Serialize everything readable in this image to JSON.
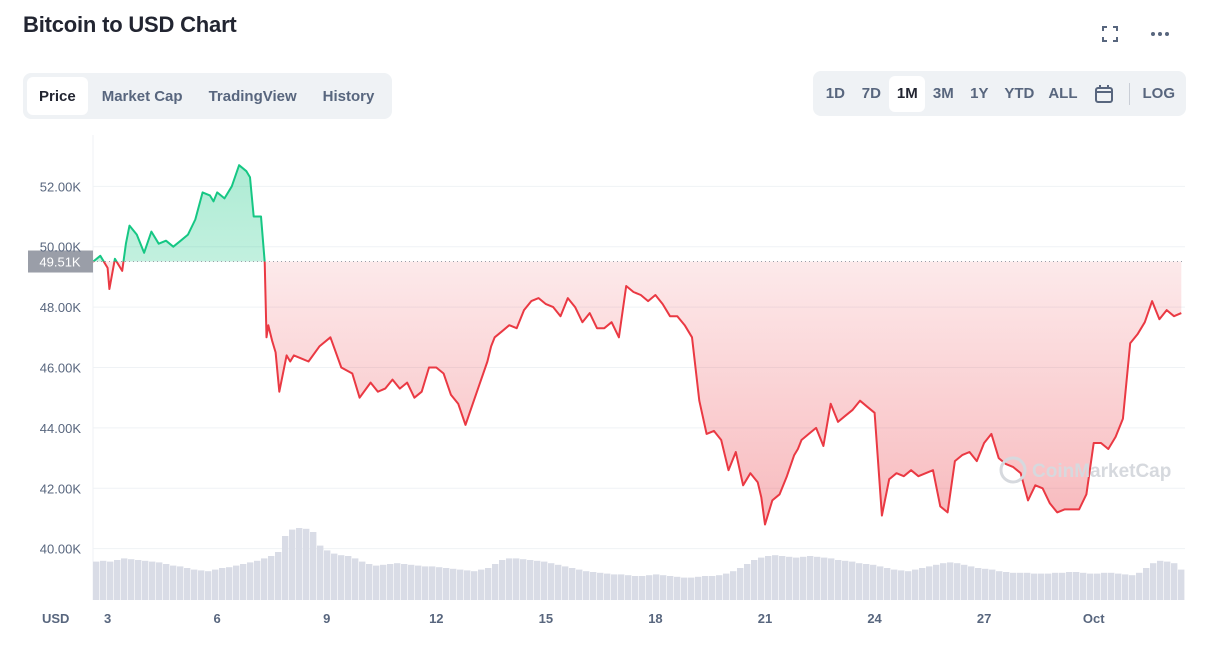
{
  "header": {
    "title": "Bitcoin to USD Chart"
  },
  "icons": {
    "fullscreen": "fullscreen-icon",
    "more": "more-horizontal-icon",
    "calendar": "calendar-icon"
  },
  "tabs": [
    {
      "label": "Price",
      "active": true
    },
    {
      "label": "Market Cap",
      "active": false
    },
    {
      "label": "TradingView",
      "active": false
    },
    {
      "label": "History",
      "active": false
    }
  ],
  "ranges": [
    {
      "label": "1D",
      "active": false
    },
    {
      "label": "7D",
      "active": false
    },
    {
      "label": "1M",
      "active": true
    },
    {
      "label": "3M",
      "active": false
    },
    {
      "label": "1Y",
      "active": false
    },
    {
      "label": "YTD",
      "active": false
    },
    {
      "label": "ALL",
      "active": false
    }
  ],
  "log_label": "LOG",
  "watermark": "CoinMarketCap",
  "colors": {
    "up": "#16c784",
    "down": "#ea3943",
    "volume": "#d9dce6",
    "price_tag": "#9a9ea8"
  },
  "chart_data": {
    "type": "area",
    "y_unit_label": "USD",
    "yticks": [
      "40.00K",
      "42.00K",
      "44.00K",
      "46.00K",
      "48.00K",
      "50.00K",
      "52.00K"
    ],
    "ytick_values": [
      40000,
      42000,
      44000,
      46000,
      48000,
      50000,
      52000
    ],
    "ylim": [
      38300,
      53700
    ],
    "xticks": [
      "3",
      "6",
      "9",
      "12",
      "15",
      "18",
      "21",
      "24",
      "27",
      "Oct"
    ],
    "xtick_values": [
      3,
      6,
      9,
      12,
      15,
      18,
      21,
      24,
      27,
      30
    ],
    "xlim": [
      2.6,
      32.5
    ],
    "reference_price": 49510,
    "reference_label": "49.51K",
    "series": [
      {
        "x": [
          2.6,
          2.8,
          3.0,
          3.05,
          3.2,
          3.4,
          3.5,
          3.6,
          3.8,
          4.0,
          4.2,
          4.4,
          4.6,
          4.8,
          5.0,
          5.2,
          5.4,
          5.6,
          5.8,
          5.9,
          6.0,
          6.2,
          6.4,
          6.6,
          6.8,
          6.9,
          7.0,
          7.2,
          7.3,
          7.35,
          7.4,
          7.5,
          7.55,
          7.6,
          7.7,
          7.9,
          8.0,
          8.1,
          8.3,
          8.5,
          8.8,
          9.1,
          9.4,
          9.7,
          9.9,
          10.2,
          10.4,
          10.6,
          10.8,
          11.0,
          11.2,
          11.4,
          11.6,
          11.8,
          12.0,
          12.2,
          12.4,
          12.6,
          12.8,
          13.0,
          13.2,
          13.4,
          13.5,
          13.6,
          13.8,
          14.0,
          14.2,
          14.4,
          14.6,
          14.8,
          15.0,
          15.2,
          15.4,
          15.6,
          15.8,
          16.0,
          16.2,
          16.4,
          16.6,
          16.8,
          17.0,
          17.2,
          17.4,
          17.6,
          17.8,
          18.0,
          18.2,
          18.4,
          18.6,
          18.8,
          19.0,
          19.2,
          19.4,
          19.6,
          19.8,
          20.0,
          20.2,
          20.4,
          20.6,
          20.8,
          20.9,
          21.0,
          21.2,
          21.4,
          21.6,
          21.8,
          21.9,
          22.0,
          22.2,
          22.4,
          22.6,
          22.8,
          23.0,
          23.2,
          23.4,
          23.6,
          23.8,
          24.0,
          24.2,
          24.4,
          24.6,
          24.8,
          25.0,
          25.2,
          25.4,
          25.6,
          25.8,
          26.0,
          26.2,
          26.4,
          26.6,
          26.8,
          27.0,
          27.2,
          27.4,
          27.6,
          27.8,
          28.0,
          28.2,
          28.4,
          28.6,
          28.8,
          29.0,
          29.2,
          29.4,
          29.6,
          29.8,
          30.0,
          30.2,
          30.4,
          30.6,
          30.8,
          31.0,
          31.2,
          31.4,
          31.6,
          31.8,
          32.0,
          32.2,
          32.4
        ],
        "y": [
          49500,
          49700,
          49300,
          48600,
          49600,
          49200,
          50100,
          50700,
          50400,
          49800,
          50500,
          50100,
          50200,
          50000,
          50200,
          50400,
          50900,
          51800,
          51700,
          51500,
          51800,
          51600,
          52000,
          52700,
          52500,
          52300,
          51000,
          51000,
          49500,
          47000,
          47400,
          46900,
          46700,
          46500,
          45200,
          46400,
          46200,
          46400,
          46300,
          46200,
          46700,
          47000,
          46000,
          45800,
          45000,
          45500,
          45200,
          45300,
          45600,
          45300,
          45500,
          45000,
          45200,
          46000,
          46000,
          45800,
          45100,
          44800,
          44100,
          44800,
          45500,
          46200,
          46700,
          47000,
          47200,
          47400,
          47300,
          47900,
          48200,
          48300,
          48100,
          48000,
          47700,
          48300,
          48000,
          47500,
          47800,
          47300,
          47300,
          47500,
          47000,
          48700,
          48500,
          48400,
          48200,
          48400,
          48100,
          47700,
          47700,
          47400,
          47000,
          44900,
          43800,
          43900,
          43600,
          42600,
          43200,
          42100,
          42500,
          42200,
          41700,
          40800,
          41600,
          41800,
          42400,
          43100,
          43300,
          43600,
          43800,
          44000,
          43400,
          44800,
          44200,
          44400,
          44600,
          44900,
          44700,
          44500,
          41100,
          42300,
          42500,
          42400,
          42600,
          42400,
          42500,
          42600,
          41400,
          41200,
          42900,
          43100,
          43200,
          42900,
          43500,
          43800,
          43000,
          42800,
          42700,
          42500,
          41600,
          42100,
          42000,
          41500,
          41200,
          41300,
          41300,
          41300,
          41800,
          43500,
          43500,
          43300,
          43700,
          44300,
          46800,
          47100,
          47500,
          48200,
          47600,
          47900,
          47700,
          47800
        ]
      }
    ],
    "volume": [
      48,
      49,
      48,
      50,
      52,
      51,
      50,
      49,
      48,
      47,
      45,
      43,
      42,
      40,
      38,
      37,
      36,
      38,
      40,
      41,
      43,
      45,
      47,
      49,
      52,
      55,
      60,
      80,
      88,
      90,
      89,
      85,
      68,
      62,
      58,
      56,
      55,
      52,
      48,
      45,
      43,
      44,
      45,
      46,
      45,
      44,
      43,
      42,
      42,
      41,
      40,
      39,
      38,
      37,
      36,
      38,
      40,
      45,
      50,
      52,
      52,
      51,
      50,
      49,
      48,
      46,
      44,
      42,
      40,
      38,
      36,
      35,
      34,
      33,
      32,
      32,
      31,
      30,
      30,
      31,
      32,
      31,
      30,
      29,
      28,
      28,
      29,
      30,
      30,
      31,
      33,
      36,
      40,
      45,
      50,
      53,
      55,
      56,
      55,
      54,
      53,
      54,
      55,
      54,
      53,
      52,
      50,
      49,
      48,
      46,
      45,
      44,
      42,
      40,
      38,
      37,
      36,
      38,
      40,
      42,
      44,
      46,
      47,
      46,
      44,
      42,
      40,
      39,
      38,
      36,
      35,
      34,
      34,
      34,
      33,
      33,
      33,
      34,
      34,
      35,
      35,
      34,
      33,
      33,
      34,
      34,
      33,
      32,
      31,
      34,
      40,
      46,
      49,
      48,
      46,
      38
    ]
  }
}
